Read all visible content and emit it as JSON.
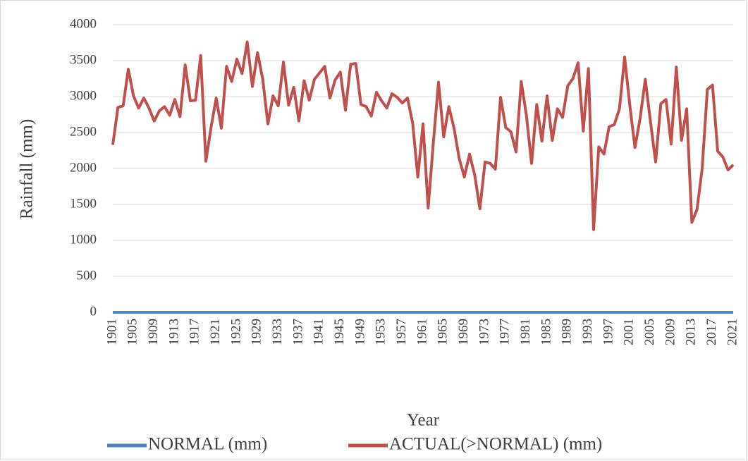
{
  "chart_data": {
    "type": "line",
    "y_label": "Rainfall (mm)",
    "x_label": "Year",
    "x": [
      1901,
      1902,
      1903,
      1904,
      1905,
      1906,
      1907,
      1908,
      1909,
      1910,
      1911,
      1912,
      1913,
      1914,
      1915,
      1916,
      1917,
      1918,
      1919,
      1920,
      1921,
      1922,
      1923,
      1924,
      1925,
      1926,
      1927,
      1928,
      1929,
      1930,
      1931,
      1932,
      1933,
      1934,
      1935,
      1936,
      1937,
      1938,
      1939,
      1940,
      1941,
      1942,
      1943,
      1944,
      1945,
      1946,
      1947,
      1948,
      1949,
      1950,
      1951,
      1952,
      1953,
      1954,
      1955,
      1956,
      1957,
      1958,
      1959,
      1960,
      1961,
      1962,
      1963,
      1964,
      1965,
      1966,
      1967,
      1968,
      1969,
      1970,
      1971,
      1972,
      1973,
      1974,
      1975,
      1976,
      1977,
      1978,
      1979,
      1980,
      1981,
      1982,
      1983,
      1984,
      1985,
      1986,
      1987,
      1988,
      1989,
      1990,
      1991,
      1992,
      1993,
      1994,
      1995,
      1996,
      1997,
      1998,
      1999,
      2000,
      2001,
      2002,
      2003,
      2004,
      2005,
      2006,
      2007,
      2008,
      2009,
      2010,
      2011,
      2012,
      2013,
      2014,
      2015,
      2016,
      2017,
      2018,
      2019,
      2020,
      2021
    ],
    "series": [
      {
        "name": "NORMAL (mm)",
        "color": "#4f81bd",
        "values": [
          0,
          0,
          0,
          0,
          0,
          0,
          0,
          0,
          0,
          0,
          0,
          0,
          0,
          0,
          0,
          0,
          0,
          0,
          0,
          0,
          0,
          0,
          0,
          0,
          0,
          0,
          0,
          0,
          0,
          0,
          0,
          0,
          0,
          0,
          0,
          0,
          0,
          0,
          0,
          0,
          0,
          0,
          0,
          0,
          0,
          0,
          0,
          0,
          0,
          0,
          0,
          0,
          0,
          0,
          0,
          0,
          0,
          0,
          0,
          0,
          0,
          0,
          0,
          0,
          0,
          0,
          0,
          0,
          0,
          0,
          0,
          0,
          0,
          0,
          0,
          0,
          0,
          0,
          0,
          0,
          0,
          0,
          0,
          0,
          0,
          0,
          0,
          0,
          0,
          0,
          0,
          0,
          0,
          0,
          0,
          0,
          0,
          0,
          0,
          0,
          0,
          0,
          0,
          0,
          0,
          0,
          0,
          0,
          0,
          0,
          0,
          0,
          0,
          0,
          0,
          0,
          0,
          0,
          0,
          0,
          0
        ]
      },
      {
        "name": "ACTUAL(>NORMAL) (mm)",
        "color": "#c0504d",
        "values": [
          2330,
          2850,
          2870,
          3380,
          3010,
          2840,
          2980,
          2840,
          2660,
          2800,
          2860,
          2740,
          2960,
          2720,
          3440,
          2940,
          2950,
          3570,
          2100,
          2570,
          2980,
          2560,
          3420,
          3210,
          3520,
          3320,
          3760,
          3140,
          3610,
          3240,
          2620,
          3010,
          2870,
          3480,
          2880,
          3130,
          2660,
          3220,
          2950,
          3240,
          3330,
          3420,
          2980,
          3230,
          3340,
          2810,
          3450,
          3460,
          2890,
          2860,
          2730,
          3060,
          2940,
          2840,
          3040,
          2990,
          2910,
          2980,
          2630,
          1880,
          2620,
          1450,
          2360,
          3200,
          2440,
          2860,
          2560,
          2140,
          1880,
          2200,
          1910,
          1440,
          2090,
          2070,
          1990,
          2990,
          2570,
          2510,
          2230,
          3210,
          2740,
          2070,
          2890,
          2380,
          3010,
          2390,
          2830,
          2710,
          3150,
          3250,
          3470,
          2520,
          3390,
          1150,
          2300,
          2200,
          2580,
          2610,
          2830,
          3550,
          2880,
          2290,
          2700,
          3240,
          2650,
          2090,
          2900,
          2960,
          2340,
          3410,
          2390,
          2830,
          1250,
          1430,
          2000,
          3100,
          3160,
          2240,
          2160,
          1980,
          2050
        ]
      }
    ],
    "xlim": [
      1901,
      2021
    ],
    "xticks": [
      1901,
      1905,
      1909,
      1913,
      1917,
      1921,
      1925,
      1929,
      1933,
      1937,
      1941,
      1945,
      1949,
      1953,
      1957,
      1961,
      1965,
      1969,
      1973,
      1977,
      1981,
      1985,
      1989,
      1993,
      1997,
      2001,
      2005,
      2009,
      2013,
      2017,
      2021
    ],
    "ylim": [
      0,
      4000
    ],
    "yticks": [
      0,
      500,
      1000,
      1500,
      2000,
      2500,
      3000,
      3500,
      4000
    ],
    "grid": true,
    "legend": "bottom"
  }
}
